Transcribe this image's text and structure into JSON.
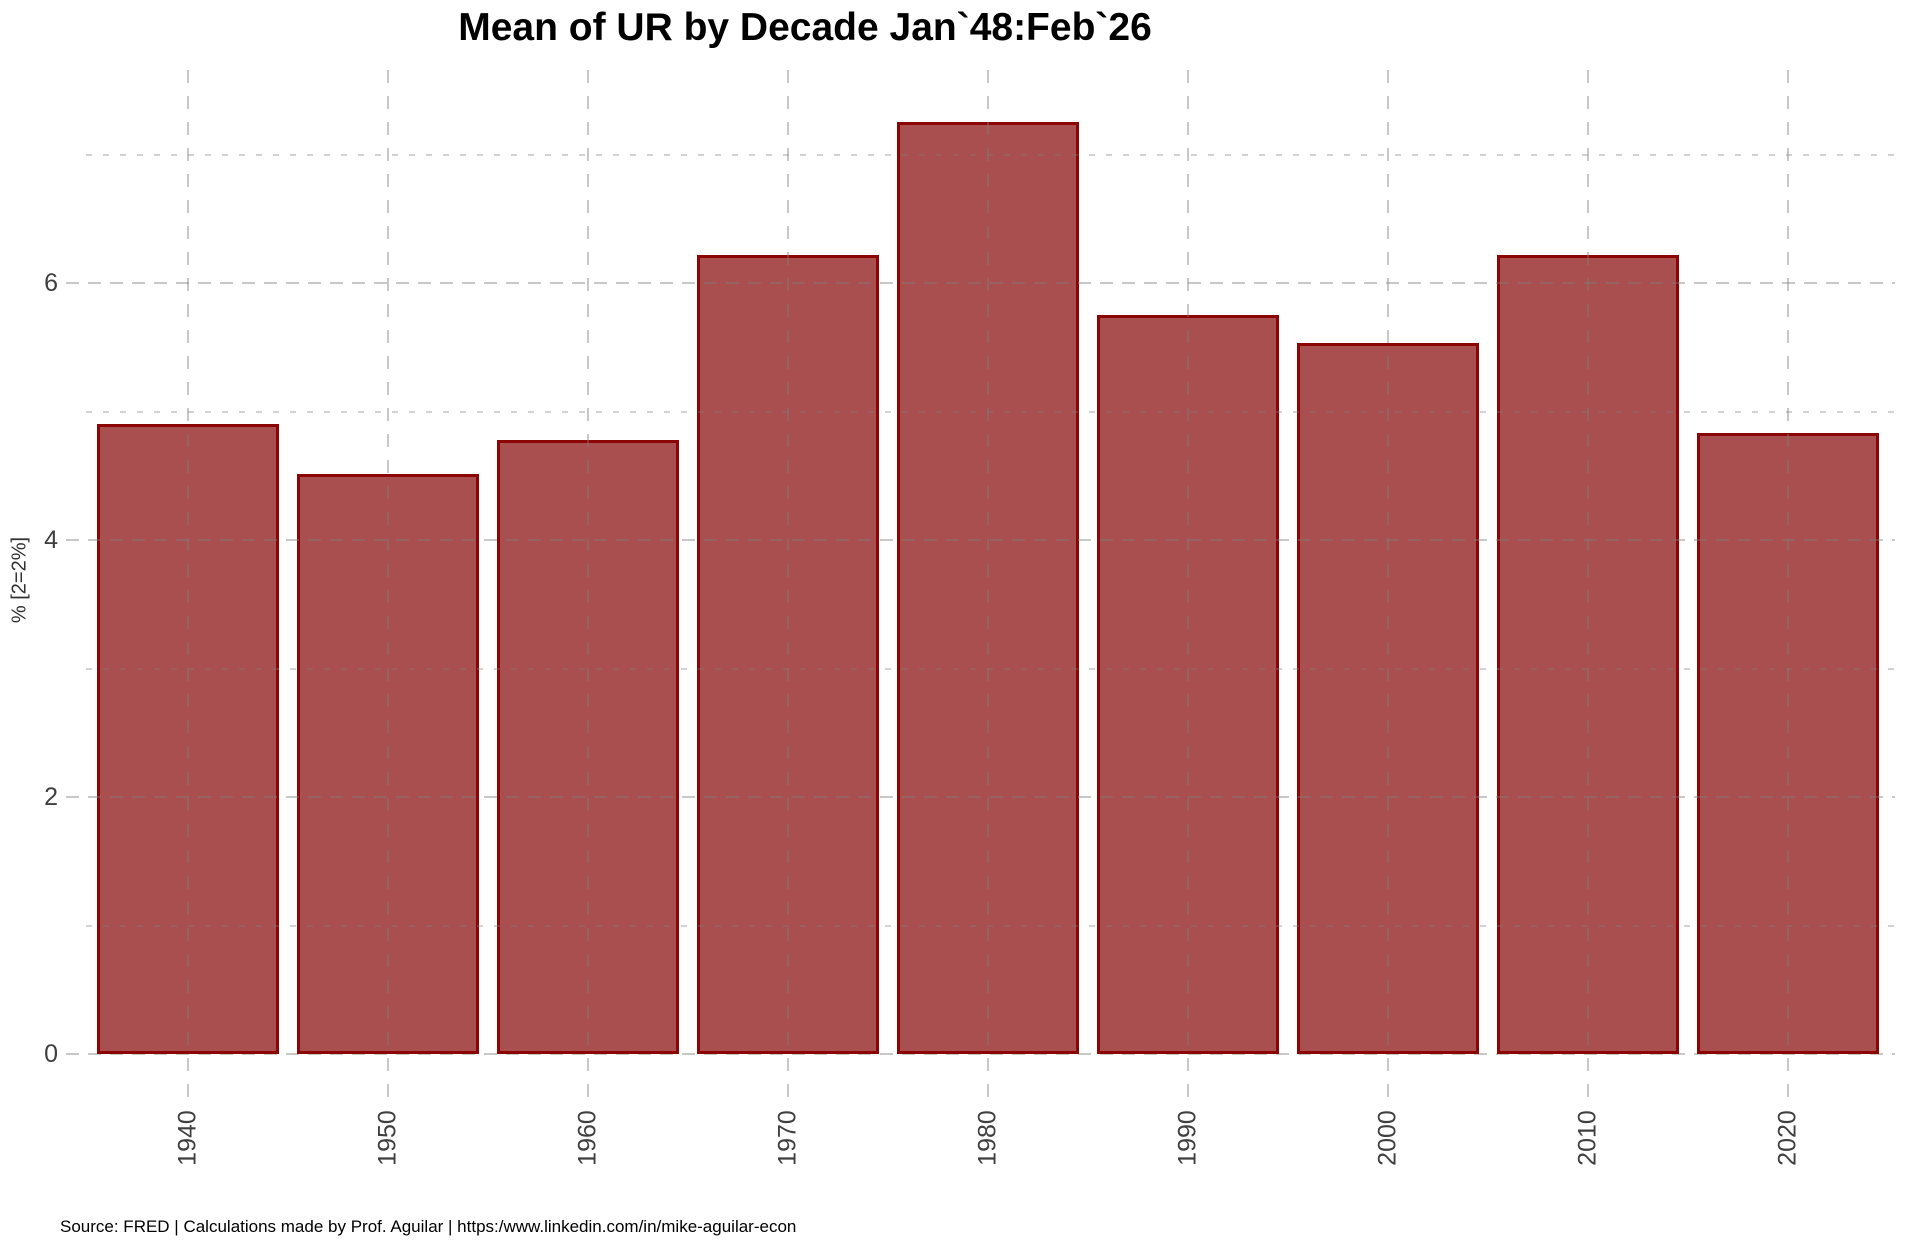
{
  "source_line": "Source: FRED | Calculations made by Prof. Aguilar | https:/www.linkedin.com/in/mike-aguilar-econ",
  "chart_data": {
    "type": "bar",
    "title": "Mean of UR by Decade Jan`48:Feb`26",
    "categories": [
      "1940",
      "1950",
      "1960",
      "1970",
      "1980",
      "1990",
      "2000",
      "2010",
      "2020"
    ],
    "values": [
      4.9,
      4.51,
      4.78,
      6.22,
      7.25,
      5.75,
      5.53,
      6.22,
      4.83
    ],
    "xlabel": "",
    "ylabel": "% [2=2%]",
    "ylim": [
      0,
      7.7
    ],
    "yticks_labeled": [
      0,
      2,
      4,
      6
    ],
    "yticks_minor": [
      1,
      3,
      5,
      7
    ],
    "grid": "dashed, major and minor horizontal lines plus vertical line per decade, drawn over bars",
    "legend": "none",
    "bar_fill": "#A94F4F",
    "bar_border": "#8B0505",
    "grid_color_major": "rgba(125,125,125,0.42)",
    "grid_color_minor": "rgba(125,125,125,0.34)",
    "tick_text_color": "#3f3f3f",
    "title_color": "#000000"
  }
}
